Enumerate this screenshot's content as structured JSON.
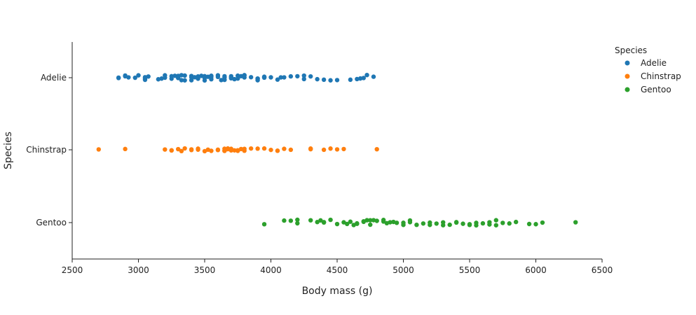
{
  "chart_data": {
    "type": "scatter",
    "xlabel": "Body mass (g)",
    "ylabel": "Species",
    "xlim": [
      2500,
      6500
    ],
    "xticks": [
      2500,
      3000,
      3500,
      4000,
      4500,
      5000,
      5500,
      6000,
      6500
    ],
    "categories": [
      "Adelie",
      "Chinstrap",
      "Gentoo"
    ],
    "grid": false,
    "legend": {
      "title": "Species",
      "placement": "top-right"
    },
    "series": [
      {
        "name": "Adelie",
        "color": "#1f77b4",
        "values": [
          2850,
          2850,
          2900,
          2900,
          2925,
          2975,
          3000,
          3050,
          3050,
          3050,
          3075,
          3150,
          3175,
          3200,
          3200,
          3250,
          3250,
          3275,
          3300,
          3300,
          3300,
          3325,
          3325,
          3350,
          3350,
          3400,
          3400,
          3400,
          3425,
          3450,
          3450,
          3450,
          3475,
          3500,
          3500,
          3500,
          3500,
          3525,
          3550,
          3550,
          3550,
          3600,
          3600,
          3625,
          3650,
          3650,
          3650,
          3700,
          3700,
          3700,
          3725,
          3750,
          3750,
          3775,
          3800,
          3800,
          3800,
          3850,
          3900,
          3900,
          3900,
          3950,
          3950,
          3950,
          4000,
          4050,
          4075,
          4100,
          4150,
          4200,
          4250,
          4250,
          4300,
          4350,
          4400,
          4450,
          4500,
          4600,
          4650,
          4675,
          4700,
          4725,
          4775
        ]
      },
      {
        "name": "Chinstrap",
        "color": "#ff7f0e",
        "values": [
          2700,
          2900,
          3200,
          3250,
          3250,
          3300,
          3325,
          3350,
          3400,
          3400,
          3450,
          3450,
          3500,
          3525,
          3550,
          3600,
          3600,
          3650,
          3650,
          3650,
          3675,
          3675,
          3700,
          3700,
          3725,
          3750,
          3750,
          3775,
          3800,
          3800,
          3850,
          3900,
          3950,
          4000,
          4050,
          4050,
          4100,
          4150,
          4300,
          4300,
          4400,
          4450,
          4500,
          4550,
          4800
        ]
      },
      {
        "name": "Gentoo",
        "color": "#2ca02c",
        "values": [
          3950,
          4100,
          4150,
          4200,
          4200,
          4300,
          4350,
          4375,
          4400,
          4400,
          4450,
          4500,
          4550,
          4575,
          4600,
          4625,
          4650,
          4650,
          4700,
          4700,
          4725,
          4750,
          4750,
          4775,
          4800,
          4850,
          4850,
          4875,
          4900,
          4925,
          4950,
          5000,
          5000,
          5050,
          5050,
          5100,
          5150,
          5200,
          5200,
          5250,
          5300,
          5300,
          5350,
          5400,
          5400,
          5450,
          5500,
          5500,
          5550,
          5550,
          5600,
          5650,
          5650,
          5700,
          5700,
          5750,
          5800,
          5850,
          5950,
          6000,
          6050,
          6300
        ]
      }
    ]
  }
}
